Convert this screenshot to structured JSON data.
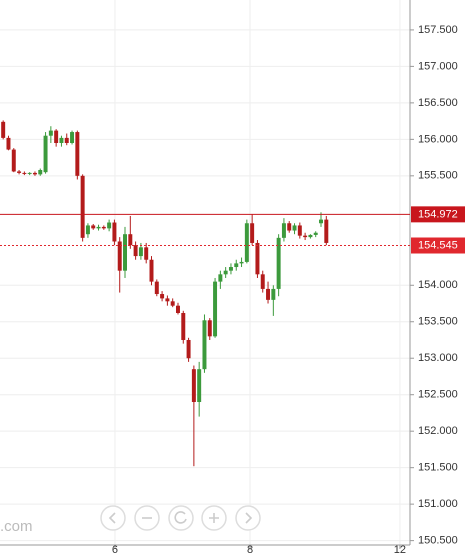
{
  "chart_data": {
    "type": "candlestick",
    "up_color": "#3c9a3c",
    "down_color": "#b31b1b",
    "open": [
      156.24,
      156.02,
      155.86,
      155.56,
      155.54,
      155.53,
      155.54,
      155.52,
      155.55,
      156.05,
      156.12,
      155.95,
      156.02,
      155.95,
      156.1,
      155.5,
      154.7,
      154.82,
      154.78,
      154.8,
      154.78,
      154.86,
      154.6,
      154.2,
      154.7,
      154.55,
      154.4,
      154.52,
      154.35,
      154.05,
      153.88,
      153.82,
      153.78,
      153.72,
      153.62,
      153.25,
      152.85,
      152.4,
      152.85,
      153.52,
      153.3,
      154.05,
      154.15,
      154.2,
      154.25,
      154.3,
      154.32,
      154.85,
      154.58,
      154.15,
      153.95,
      153.8,
      153.95,
      154.65,
      154.85,
      154.75,
      154.82,
      154.68,
      154.66,
      154.69,
      154.85,
      154.9
    ],
    "high": [
      156.26,
      156.05,
      155.88,
      155.58,
      155.56,
      155.55,
      155.56,
      155.6,
      156.1,
      156.18,
      156.14,
      156.05,
      156.08,
      156.12,
      156.12,
      155.52,
      154.85,
      154.84,
      154.83,
      154.82,
      154.9,
      154.9,
      154.66,
      154.8,
      154.95,
      154.6,
      154.58,
      154.58,
      154.4,
      154.08,
      153.92,
      153.86,
      153.82,
      153.76,
      153.65,
      153.28,
      152.9,
      152.95,
      153.6,
      153.55,
      154.1,
      154.2,
      154.25,
      154.3,
      154.35,
      154.38,
      154.9,
      154.97,
      154.62,
      154.2,
      154.05,
      154.0,
      154.7,
      154.92,
      154.88,
      154.85,
      154.86,
      154.72,
      154.7,
      154.74,
      155.0,
      154.95
    ],
    "low": [
      156.0,
      155.85,
      155.55,
      155.52,
      155.51,
      155.51,
      155.5,
      155.5,
      155.53,
      155.95,
      155.9,
      155.9,
      155.92,
      155.93,
      155.45,
      154.6,
      154.65,
      154.76,
      154.75,
      154.76,
      154.74,
      154.55,
      153.9,
      154.1,
      154.5,
      154.35,
      154.35,
      154.3,
      154.0,
      153.85,
      153.78,
      153.72,
      153.7,
      153.6,
      153.2,
      152.95,
      151.52,
      152.2,
      152.8,
      153.25,
      153.28,
      153.95,
      154.1,
      154.15,
      154.2,
      154.25,
      154.3,
      154.55,
      154.1,
      153.9,
      153.75,
      153.58,
      153.85,
      154.6,
      154.72,
      154.7,
      154.64,
      154.62,
      154.64,
      154.66,
      154.8,
      154.55
    ],
    "close": [
      156.02,
      155.86,
      155.56,
      155.54,
      155.53,
      155.54,
      155.52,
      155.58,
      156.05,
      156.12,
      155.95,
      156.02,
      155.95,
      156.1,
      155.5,
      154.65,
      154.82,
      154.78,
      154.8,
      154.78,
      154.86,
      154.6,
      154.2,
      154.7,
      154.55,
      154.4,
      154.52,
      154.35,
      154.05,
      153.88,
      153.82,
      153.78,
      153.72,
      153.62,
      153.25,
      153.0,
      152.4,
      152.85,
      153.52,
      153.3,
      154.05,
      154.15,
      154.2,
      154.25,
      154.3,
      154.32,
      154.85,
      154.58,
      154.15,
      153.95,
      153.8,
      153.95,
      154.65,
      154.85,
      154.75,
      154.82,
      154.68,
      154.66,
      154.69,
      154.72,
      154.9,
      154.58
    ],
    "xlim": [
      -0.6,
      76.8
    ],
    "xticks": [
      {
        "value": 21.1,
        "label": "6"
      },
      {
        "value": 46.6,
        "label": "8"
      },
      {
        "value": 74.9,
        "label": "12"
      }
    ],
    "ylim": [
      150.44,
      157.91
    ],
    "yticks": [
      {
        "value": 150.5,
        "label": "150.500"
      },
      {
        "value": 151,
        "label": "151.000"
      },
      {
        "value": 151.5,
        "label": "151.500"
      },
      {
        "value": 152,
        "label": "152.000"
      },
      {
        "value": 152.5,
        "label": "152.500"
      },
      {
        "value": 153,
        "label": "153.000"
      },
      {
        "value": 153.5,
        "label": "153.500"
      },
      {
        "value": 154,
        "label": "154.000"
      },
      {
        "value": 155.5,
        "label": "155.500"
      },
      {
        "value": 156,
        "label": "156.000"
      },
      {
        "value": 156.5,
        "label": "156.500"
      },
      {
        "value": 157,
        "label": "157.000"
      },
      {
        "value": 157.5,
        "label": "157.500"
      }
    ],
    "grid": true,
    "price_lines": [
      {
        "value": 154.972,
        "style": "solid",
        "color": "#c8161d"
      },
      {
        "value": 154.545,
        "style": "dotted",
        "color": "#e0282e"
      }
    ],
    "watermark": ".com"
  }
}
